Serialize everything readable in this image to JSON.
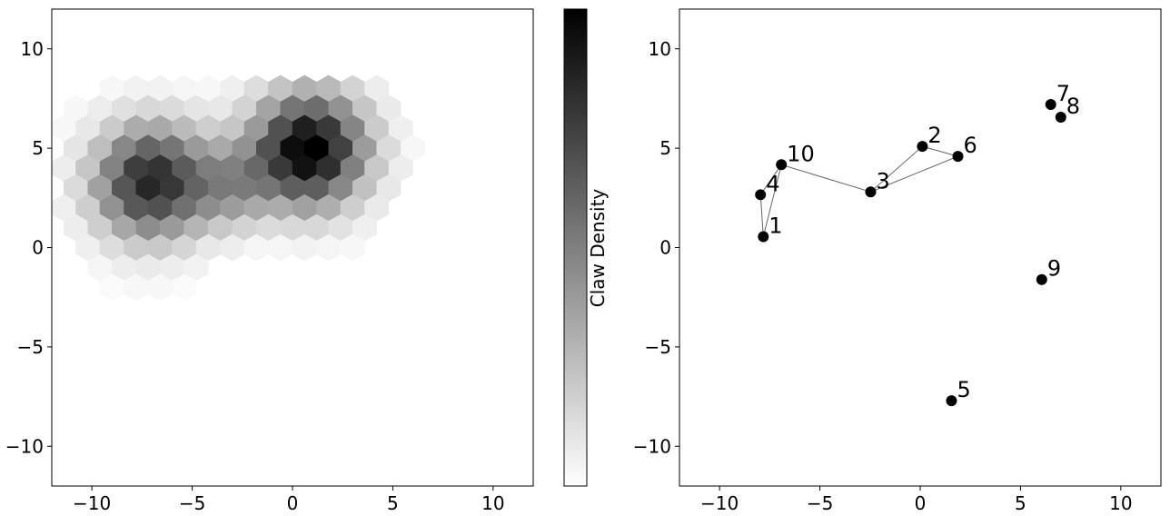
{
  "chart_data": [
    {
      "type": "hexbin",
      "cmap": "Greys",
      "colorbar_label": "Claw Density",
      "xlim": [
        -12,
        12
      ],
      "ylim": [
        -12,
        12
      ],
      "xticks": [
        {
          "value": -10,
          "label": "−10"
        },
        {
          "value": -5,
          "label": "−5"
        },
        0,
        5,
        10
      ],
      "yticks": [
        {
          "value": -10,
          "label": "−10"
        },
        {
          "value": -5,
          "label": "−5"
        },
        0,
        5,
        10
      ],
      "x": [
        -9.0,
        -7.8,
        -6.6,
        -5.4,
        -4.2,
        -3.0,
        -1.8,
        -0.6,
        0.6,
        1.8,
        3.0,
        4.2,
        -10.8,
        -9.6,
        -8.4,
        -7.2,
        -6.0,
        -4.8,
        -3.6,
        -2.4,
        -1.2,
        0,
        1.2,
        2.4,
        3.6,
        4.8,
        -11.4,
        -10.2,
        -9.0,
        -7.8,
        -6.6,
        -5.4,
        -4.2,
        -3.0,
        -1.8,
        -0.6,
        0.6,
        1.8,
        3.0,
        4.2,
        5.4,
        -10.8,
        -9.6,
        -8.4,
        -7.2,
        -6.0,
        -4.8,
        -3.6,
        -2.4,
        -1.2,
        0,
        1.2,
        2.4,
        3.6,
        4.8,
        6.0,
        -11.4,
        -10.2,
        -9.0,
        -7.8,
        -6.6,
        -5.4,
        -4.2,
        -3.0,
        -1.8,
        -0.6,
        0.6,
        1.8,
        3.0,
        4.2,
        5.4,
        -10.8,
        -9.6,
        -8.4,
        -7.2,
        -6.0,
        -4.8,
        -3.6,
        -2.4,
        -1.2,
        0,
        1.2,
        2.4,
        3.6,
        4.8,
        -11.4,
        -10.2,
        -9.0,
        -7.8,
        -6.6,
        -5.4,
        -4.2,
        -3.0,
        -1.8,
        -0.6,
        0.6,
        1.8,
        3.0,
        4.2,
        -10.8,
        -9.6,
        -8.4,
        -7.2,
        -6.0,
        -4.8,
        -3.6,
        -2.4,
        -1.2,
        0,
        1.2,
        2.4,
        3.6,
        -10.2,
        -9.0,
        -7.8,
        -6.6,
        -5.4,
        -4.2,
        -3.0,
        -1.8,
        -0.6,
        0.6,
        1.8,
        3.0,
        -9.6,
        -8.4,
        -7.2,
        -6.0,
        -4.8,
        -9.0,
        -7.8,
        -6.6,
        -5.4
      ],
      "y": [
        8,
        8,
        8,
        8,
        8,
        8,
        8,
        8,
        8,
        8,
        8,
        8,
        7,
        7,
        7,
        7,
        7,
        7,
        7,
        7,
        7,
        7,
        7,
        7,
        7,
        7,
        6,
        6,
        6,
        6,
        6,
        6,
        6,
        6,
        6,
        6,
        6,
        6,
        6,
        6,
        6,
        5,
        5,
        5,
        5,
        5,
        5,
        5,
        5,
        5,
        5,
        5,
        5,
        5,
        5,
        5,
        4,
        4,
        4,
        4,
        4,
        4,
        4,
        4,
        4,
        4,
        4,
        4,
        4,
        4,
        4,
        3,
        3,
        3,
        3,
        3,
        3,
        3,
        3,
        3,
        3,
        3,
        3,
        3,
        3,
        2,
        2,
        2,
        2,
        2,
        2,
        2,
        2,
        2,
        2,
        2,
        2,
        2,
        2,
        1,
        1,
        1,
        1,
        1,
        1,
        1,
        1,
        1,
        1,
        1,
        1,
        1,
        0,
        0,
        0,
        0,
        0,
        0,
        0,
        0,
        0,
        0,
        0,
        0,
        -1,
        -1,
        -1,
        -1,
        -1,
        -2,
        -2,
        -2,
        -2
      ],
      "values": [
        3,
        5,
        5,
        4,
        3,
        6,
        13,
        23,
        30,
        27,
        17,
        7,
        3,
        7,
        12,
        15,
        14,
        10,
        9,
        17,
        35,
        53,
        56,
        42,
        22,
        8,
        3,
        9,
        20,
        32,
        33,
        26,
        19,
        22,
        39,
        67,
        86,
        76,
        47,
        20,
        6,
        10,
        25,
        46,
        59,
        53,
        39,
        33,
        42,
        67,
        93,
        98,
        73,
        38,
        14,
        3,
        7,
        22,
        48,
        74,
        78,
        63,
        50,
        49,
        58,
        76,
        91,
        80,
        49,
        21,
        7,
        14,
        36,
        65,
        83,
        77,
        60,
        52,
        51,
        53,
        62,
        62,
        46,
        24,
        9,
        6,
        19,
        42,
        64,
        67,
        55,
        44,
        38,
        33,
        32,
        36,
        31,
        19,
        8,
        7,
        19,
        34,
        44,
        39,
        29,
        21,
        17,
        14,
        15,
        15,
        11,
        6,
        6,
        13,
        20,
        21,
        16,
        9,
        7,
        4,
        4,
        5,
        4,
        3,
        4,
        7,
        8,
        7,
        5,
        2,
        3,
        3,
        2
      ]
    },
    {
      "type": "scatter",
      "color": "#000000",
      "xlim": [
        -12,
        12
      ],
      "ylim": [
        -12,
        12
      ],
      "xticks": [
        {
          "value": -10,
          "label": "−10"
        },
        {
          "value": -5,
          "label": "−5"
        },
        0,
        5,
        10
      ],
      "yticks": [
        {
          "value": -10,
          "label": "−10"
        },
        {
          "value": -5,
          "label": "−5"
        },
        0,
        5,
        10
      ],
      "labels": [
        "1",
        "2",
        "3",
        "4",
        "5",
        "6",
        "7",
        "8",
        "9",
        "10"
      ],
      "x": [
        -7.82,
        0.11,
        -2.47,
        -7.96,
        1.56,
        1.88,
        6.51,
        7.01,
        6.06,
        -6.92
      ],
      "y": [
        0.55,
        5.09,
        2.8,
        2.66,
        -7.71,
        4.59,
        7.2,
        6.56,
        -1.61,
        4.17
      ],
      "line": {
        "color": "#666666",
        "x": [
          -6.92,
          -7.96,
          -7.82,
          -6.92,
          -2.47,
          0.11,
          1.88,
          -2.47
        ],
        "y": [
          4.17,
          2.66,
          0.55,
          4.17,
          2.8,
          5.09,
          4.59,
          2.8
        ]
      }
    }
  ]
}
